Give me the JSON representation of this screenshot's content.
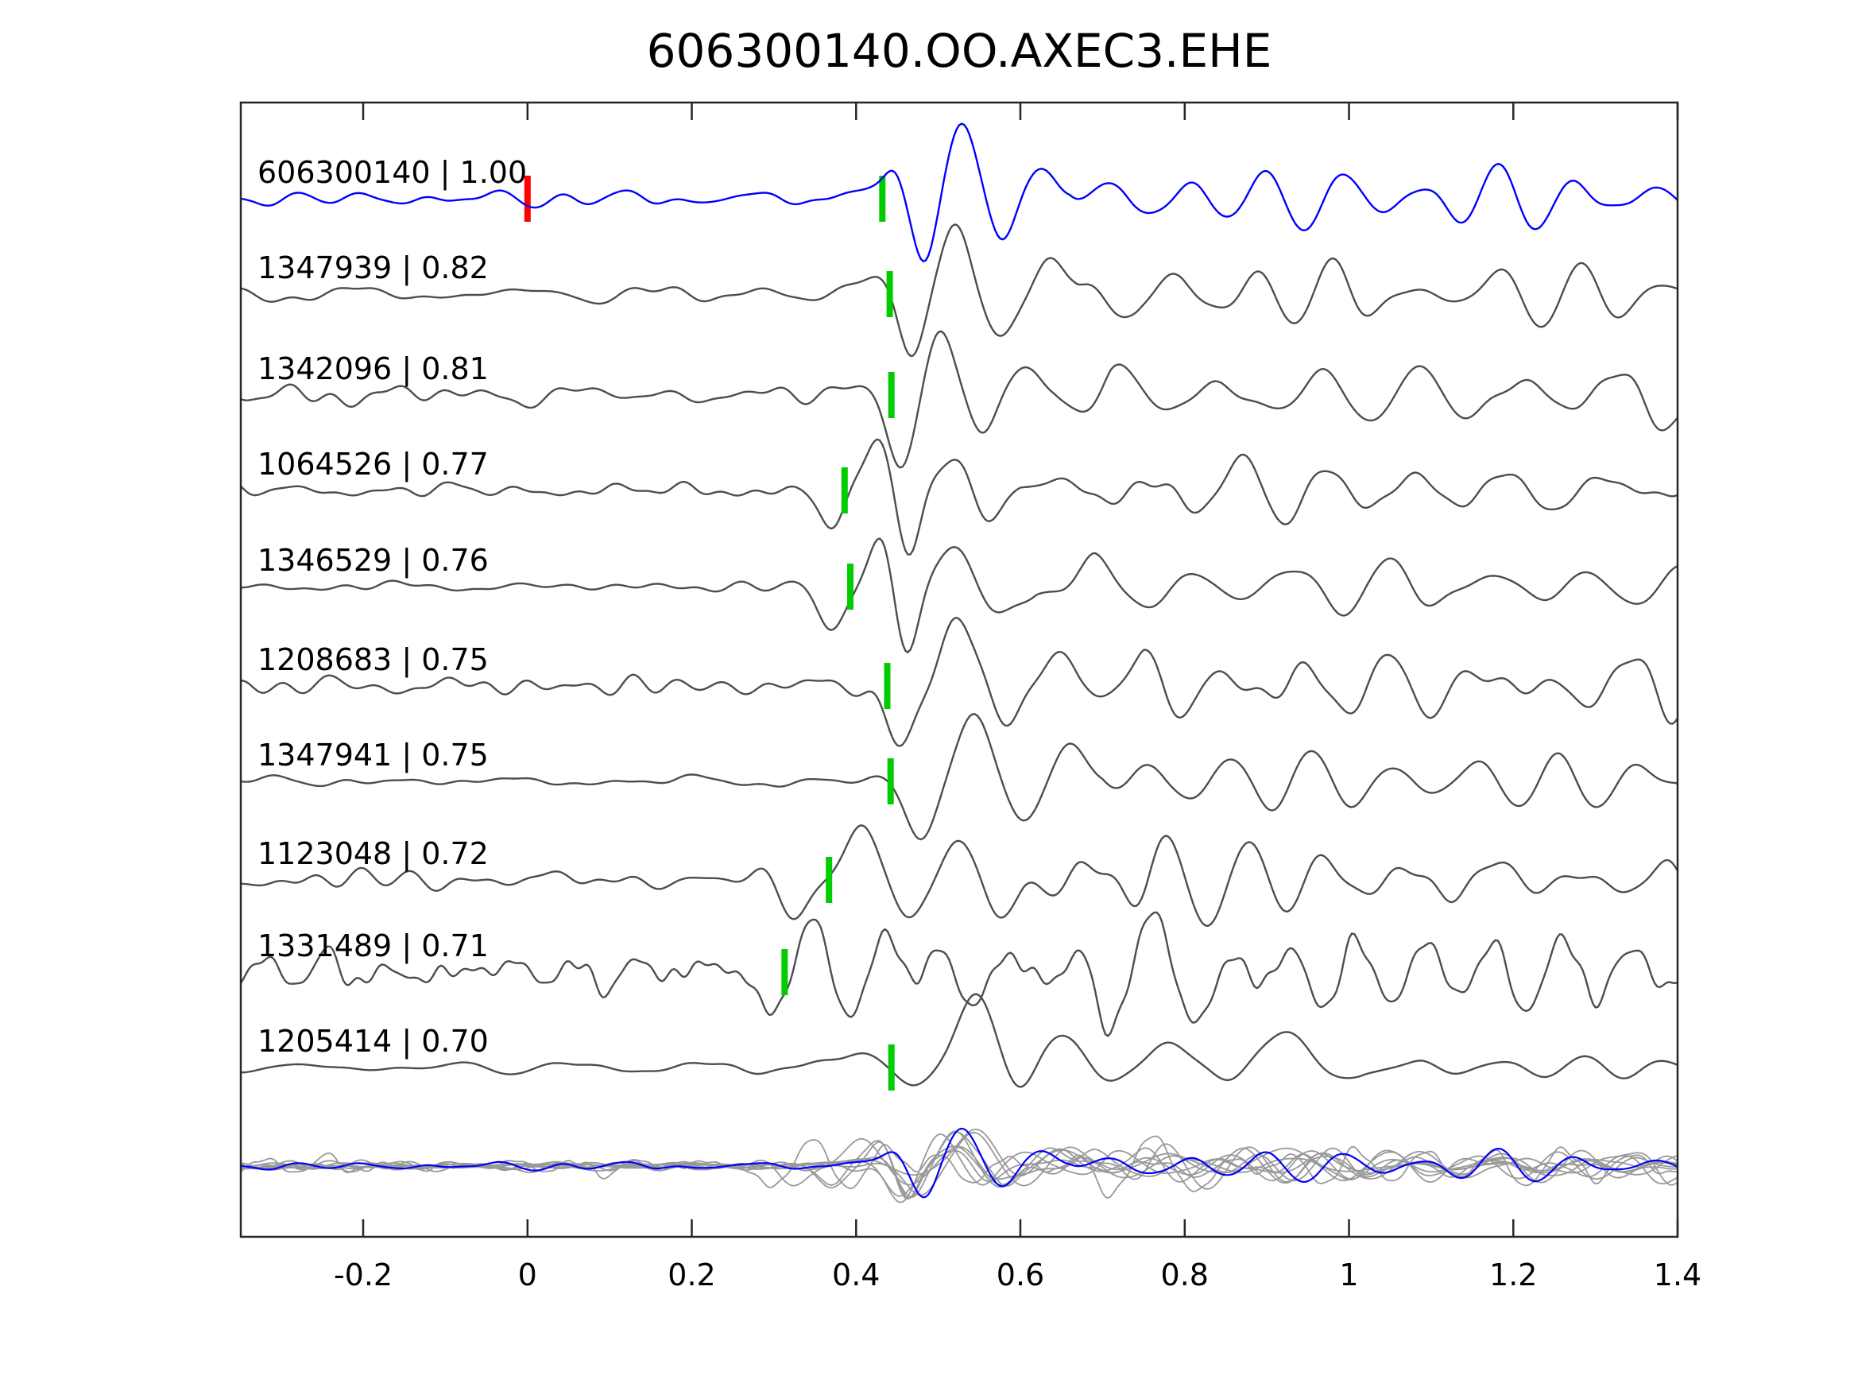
{
  "title": "606300140.OO.AXEC3.EHE",
  "colors": {
    "background": "#ffffff",
    "text": "#000000",
    "axis": "#262626",
    "reference": "#0000ff",
    "trace": "#4d4d4d",
    "overlay_gray": "#999999",
    "pick_green": "#00cc00",
    "pick_red": "#ff0000"
  },
  "axis": {
    "xmin": -0.349,
    "xmax": 1.4,
    "ticks": [
      {
        "value": -0.2,
        "label": "-0.2"
      },
      {
        "value": 0,
        "label": "0"
      },
      {
        "value": 0.2,
        "label": "0.2"
      },
      {
        "value": 0.4,
        "label": "0.4"
      },
      {
        "value": 0.6,
        "label": "0.6"
      },
      {
        "value": 0.8,
        "label": "0.8"
      },
      {
        "value": 1,
        "label": "1"
      },
      {
        "value": 1.2,
        "label": "1.2"
      },
      {
        "value": 1.4,
        "label": "1.4"
      }
    ]
  },
  "chart_data": {
    "type": "line",
    "title": "606300140.OO.AXEC3.EHE",
    "xlabel": "",
    "ylabel": "",
    "x_range": [
      -0.35,
      1.4
    ],
    "legend": "none",
    "grid": false,
    "description": "Stacked seismic waveform similarity plot: blue reference trace 606300140 followed by nine gray matched-event traces, each labeled 'event id | correlation'. Green bars mark phase picks, the red bar marks reference time 0, and the bottom row overlays all traces (gray) with the reference (blue).",
    "traces": [
      {
        "id": "606300140",
        "corr": "1.00",
        "corr_value": 1.0,
        "label_text": "606300140 | 1.00",
        "color_key": "reference",
        "markers": [
          {
            "x": 0.0,
            "color_key": "pick_red"
          },
          {
            "x": 0.432,
            "color_key": "pick_green"
          }
        ],
        "render": {
          "seed": 11,
          "noise": 8,
          "hf": 0,
          "lobes": [
            [
              0.42,
              12,
              0.04
            ],
            [
              0.447,
              28,
              0.016
            ],
            [
              0.483,
              -82,
              0.02
            ],
            [
              0.528,
              95,
              0.024
            ],
            [
              0.578,
              -48,
              0.022
            ],
            [
              0.627,
              40,
              0.024
            ]
          ],
          "coda": {
            "start": 0.66,
            "amp": 30,
            "period": 0.095,
            "decay": 0.3
          }
        }
      },
      {
        "id": "1347939",
        "corr": "0.82",
        "corr_value": 0.82,
        "label_text": "1347939 | 0.82",
        "color_key": "trace",
        "markers": [
          {
            "x": 0.441,
            "color_key": "pick_green"
          }
        ],
        "render": {
          "seed": 22,
          "noise": 12,
          "hf": 0,
          "lobes": [
            [
              0.41,
              16,
              0.03
            ],
            [
              0.468,
              -72,
              0.022
            ],
            [
              0.52,
              88,
              0.024
            ],
            [
              0.578,
              -52,
              0.024
            ],
            [
              0.633,
              38,
              0.024
            ]
          ],
          "coda": {
            "start": 0.67,
            "amp": 30,
            "period": 0.1,
            "decay": 0.4
          }
        }
      },
      {
        "id": "1342096",
        "corr": "0.81",
        "corr_value": 0.81,
        "label_text": "1342096 | 0.81",
        "color_key": "trace",
        "markers": [
          {
            "x": 0.443,
            "color_key": "pick_green"
          }
        ],
        "render": {
          "seed": 33,
          "noise": 12,
          "hf": 0,
          "lobes": [
            [
              0.405,
              12,
              0.03
            ],
            [
              0.452,
              -88,
              0.022
            ],
            [
              0.505,
              78,
              0.024
            ],
            [
              0.553,
              -55,
              0.022
            ],
            [
              0.603,
              34,
              0.024
            ]
          ],
          "coda": {
            "start": 0.64,
            "amp": 32,
            "period": 0.12,
            "decay": 0.4
          }
        }
      },
      {
        "id": "1064526",
        "corr": "0.77",
        "corr_value": 0.77,
        "label_text": "1064526 | 0.77",
        "color_key": "trace",
        "markers": [
          {
            "x": 0.386,
            "color_key": "pick_green"
          }
        ],
        "render": {
          "seed": 44,
          "noise": 10,
          "hf": 0,
          "lobes": [
            [
              0.371,
              -46,
              0.02
            ],
            [
              0.427,
              68,
              0.02
            ],
            [
              0.464,
              -76,
              0.02
            ],
            [
              0.515,
              42,
              0.024
            ],
            [
              0.565,
              -30,
              0.024
            ]
          ],
          "coda": {
            "start": 0.6,
            "amp": 28,
            "period": 0.11,
            "decay": 0.4
          }
        }
      },
      {
        "id": "1346529",
        "corr": "0.76",
        "corr_value": 0.76,
        "label_text": "1346529 | 0.76",
        "color_key": "trace",
        "markers": [
          {
            "x": 0.393,
            "color_key": "pick_green"
          }
        ],
        "render": {
          "seed": 55,
          "noise": 9,
          "hf": 0,
          "lobes": [
            [
              0.368,
              -52,
              0.022
            ],
            [
              0.432,
              70,
              0.02
            ],
            [
              0.462,
              -85,
              0.02
            ],
            [
              0.52,
              45,
              0.026
            ],
            [
              0.572,
              -32,
              0.026
            ]
          ],
          "coda": {
            "start": 0.62,
            "amp": 27,
            "period": 0.12,
            "decay": 0.4
          }
        }
      },
      {
        "id": "1208683",
        "corr": "0.75",
        "corr_value": 0.75,
        "label_text": "1208683 | 0.75",
        "color_key": "trace",
        "markers": [
          {
            "x": 0.438,
            "color_key": "pick_green"
          }
        ],
        "render": {
          "seed": 66,
          "noise": 13,
          "hf": 0,
          "lobes": [
            [
              0.455,
              -75,
              0.024
            ],
            [
              0.525,
              88,
              0.026
            ],
            [
              0.585,
              -50,
              0.025
            ],
            [
              0.643,
              42,
              0.026
            ]
          ],
          "coda": {
            "start": 0.68,
            "amp": 30,
            "period": 0.1,
            "decay": 0.4
          }
        }
      },
      {
        "id": "1347941",
        "corr": "0.75",
        "corr_value": 0.75,
        "label_text": "1347941 | 0.75",
        "color_key": "trace",
        "markers": [
          {
            "x": 0.442,
            "color_key": "pick_green"
          }
        ],
        "render": {
          "seed": 77,
          "noise": 7,
          "hf": 0,
          "lobes": [
            [
              0.478,
              -72,
              0.025
            ],
            [
              0.543,
              92,
              0.027
            ],
            [
              0.605,
              -56,
              0.026
            ],
            [
              0.662,
              46,
              0.027
            ]
          ],
          "coda": {
            "start": 0.7,
            "amp": 32,
            "period": 0.1,
            "decay": 0.45
          }
        }
      },
      {
        "id": "1123048",
        "corr": "0.72",
        "corr_value": 0.72,
        "label_text": "1123048 | 0.72",
        "color_key": "trace",
        "markers": [
          {
            "x": 0.367,
            "color_key": "pick_green"
          }
        ],
        "render": {
          "seed": 88,
          "noise": 13,
          "hf": 0,
          "lobes": [
            [
              0.33,
              -42,
              0.024
            ],
            [
              0.405,
              82,
              0.024
            ],
            [
              0.465,
              -55,
              0.024
            ],
            [
              0.52,
              45,
              0.025
            ],
            [
              0.572,
              -36,
              0.024
            ]
          ],
          "coda": {
            "start": 0.6,
            "amp": 55,
            "period": 0.1,
            "decay": 2.0
          }
        }
      },
      {
        "id": "1331489",
        "corr": "0.71",
        "corr_value": 0.71,
        "label_text": "1331489 | 0.71",
        "color_key": "trace",
        "markers": [
          {
            "x": 0.313,
            "color_key": "pick_green"
          }
        ],
        "render": {
          "seed": 99,
          "noise": 20,
          "hf": 1,
          "lobes": [
            [
              0.3,
              -55,
              0.018
            ],
            [
              0.345,
              78,
              0.018
            ],
            [
              0.393,
              -56,
              0.02
            ],
            [
              0.438,
              36,
              0.02
            ],
            [
              0.7,
              -40,
              0.022
            ],
            [
              0.77,
              55,
              0.022
            ],
            [
              0.818,
              -55,
              0.022
            ]
          ],
          "coda": {
            "start": 0.47,
            "amp": 36,
            "period": 0.085,
            "decay": 0.35
          }
        }
      },
      {
        "id": "1205414",
        "corr": "0.70",
        "corr_value": 0.7,
        "label_text": "1205414 | 0.70",
        "color_key": "trace",
        "markers": [
          {
            "x": 0.443,
            "color_key": "pick_green"
          }
        ],
        "render": {
          "seed": 110,
          "noise": 6,
          "hf": 0,
          "lobes": [
            [
              0.41,
              16,
              0.045
            ],
            [
              0.468,
              -24,
              0.026
            ],
            [
              0.545,
              88,
              0.03
            ],
            [
              0.6,
              -28,
              0.025
            ],
            [
              0.645,
              40,
              0.035
            ],
            [
              0.71,
              -20,
              0.03
            ],
            [
              0.78,
              34,
              0.035
            ],
            [
              0.85,
              -20,
              0.03
            ],
            [
              0.92,
              50,
              0.035
            ],
            [
              0.99,
              -16,
              0.03
            ]
          ],
          "coda": {
            "start": 1.02,
            "amp": 10,
            "period": 0.1,
            "decay": 0.8
          }
        }
      }
    ],
    "overlay_row": {
      "description": "All ten traces overlaid at the bottom: matched events in gray, reference 606300140 in blue",
      "scale": 0.5
    }
  }
}
